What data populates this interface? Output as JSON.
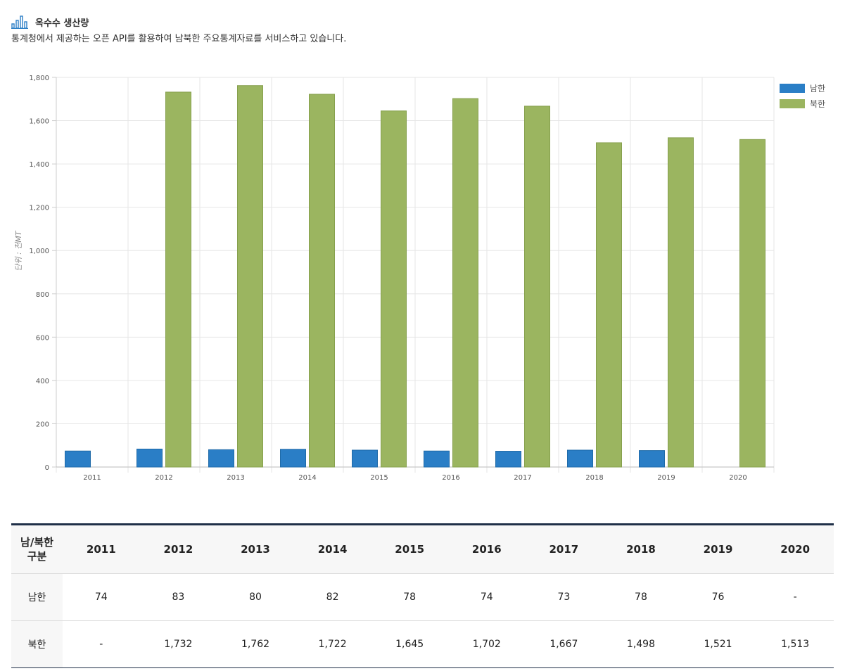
{
  "header": {
    "title": "옥수수 생산량",
    "description": "통계청에서 제공하는 오픈 API를 활용하여 남북한 주요통계자료를 서비스하고 있습니다."
  },
  "chart_data": {
    "type": "bar",
    "title": "옥수수 생산량",
    "categories": [
      "2011",
      "2012",
      "2013",
      "2014",
      "2015",
      "2016",
      "2017",
      "2018",
      "2019",
      "2020"
    ],
    "series": [
      {
        "name": "남한",
        "color": "#2a7ec6",
        "values": [
          74,
          83,
          80,
          82,
          78,
          74,
          73,
          78,
          76,
          null
        ]
      },
      {
        "name": "북한",
        "color": "#9bb560",
        "values": [
          null,
          1732,
          1762,
          1722,
          1645,
          1702,
          1667,
          1498,
          1521,
          1513
        ]
      }
    ],
    "ylabel": "단위 : 천MT",
    "ylim": [
      0,
      1800
    ],
    "yticks": [
      0,
      200,
      400,
      600,
      800,
      1000,
      1200,
      1400,
      1600,
      1800
    ],
    "ytick_labels": [
      "0",
      "200",
      "400",
      "600",
      "800",
      "1,000",
      "1,200",
      "1,400",
      "1,600",
      "1,800"
    ],
    "grid": true,
    "legend": "top-right"
  },
  "table": {
    "corner_line1": "남/북한",
    "corner_line2": "구분",
    "years": [
      "2011",
      "2012",
      "2013",
      "2014",
      "2015",
      "2016",
      "2017",
      "2018",
      "2019",
      "2020"
    ],
    "rows": [
      {
        "label": "남한",
        "values": [
          "74",
          "83",
          "80",
          "82",
          "78",
          "74",
          "73",
          "78",
          "76",
          "-"
        ]
      },
      {
        "label": "북한",
        "values": [
          "-",
          "1,732",
          "1,762",
          "1,722",
          "1,645",
          "1,702",
          "1,667",
          "1,498",
          "1,521",
          "1,513"
        ]
      }
    ]
  }
}
